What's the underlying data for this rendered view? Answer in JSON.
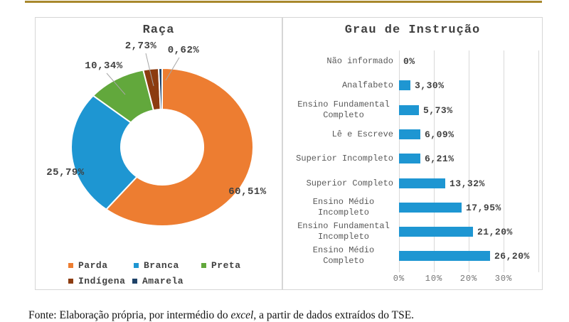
{
  "page": {
    "top_rule_color": "#A8882D",
    "footer": {
      "prefix": "Fonte: Elaboração própria, por intermédio do ",
      "italic": "excel",
      "suffix": ", a partir de dados extraídos do TSE."
    }
  },
  "chart_data": [
    {
      "type": "pie",
      "subtype": "donut",
      "title": "Raça",
      "labels": [
        "Parda",
        "Branca",
        "Preta",
        "Indígena",
        "Amarela"
      ],
      "values": [
        60.51,
        25.79,
        10.34,
        2.73,
        0.62
      ],
      "value_labels": [
        "60,51%",
        "25,79%",
        "10,34%",
        "2,73%",
        "0,62%"
      ],
      "colors": [
        "#ED7D31",
        "#1E96D2",
        "#62A83C",
        "#8C3C10",
        "#1F4268"
      ],
      "start_angle_deg": 0,
      "direction": "clockwise",
      "legend_position": "bottom",
      "leader_line_color": "#A6A6A6"
    },
    {
      "type": "bar",
      "orientation": "horizontal",
      "title": "Grau de Instrução",
      "categories": [
        "Não informado",
        "Analfabeto",
        "Ensino Fundamental Completo",
        "Lê e Escreve",
        "Superior Incompleto",
        "Superior Completo",
        "Ensino Médio Incompleto",
        "Ensino Fundamental Incompleto",
        "Ensino Médio Completo"
      ],
      "values": [
        0,
        3.3,
        5.73,
        6.09,
        6.21,
        13.32,
        17.95,
        21.2,
        26.2
      ],
      "value_labels": [
        "0%",
        "3,30%",
        "5,73%",
        "6,09%",
        "6,21%",
        "13,32%",
        "17,95%",
        "21,20%",
        "26,20%"
      ],
      "bar_color": "#1E96D2",
      "xlim": [
        0,
        40
      ],
      "x_ticks": [
        "0%",
        "10%",
        "20%",
        "30%"
      ],
      "grid": true,
      "gridline_color": "#D9D9D9"
    }
  ]
}
